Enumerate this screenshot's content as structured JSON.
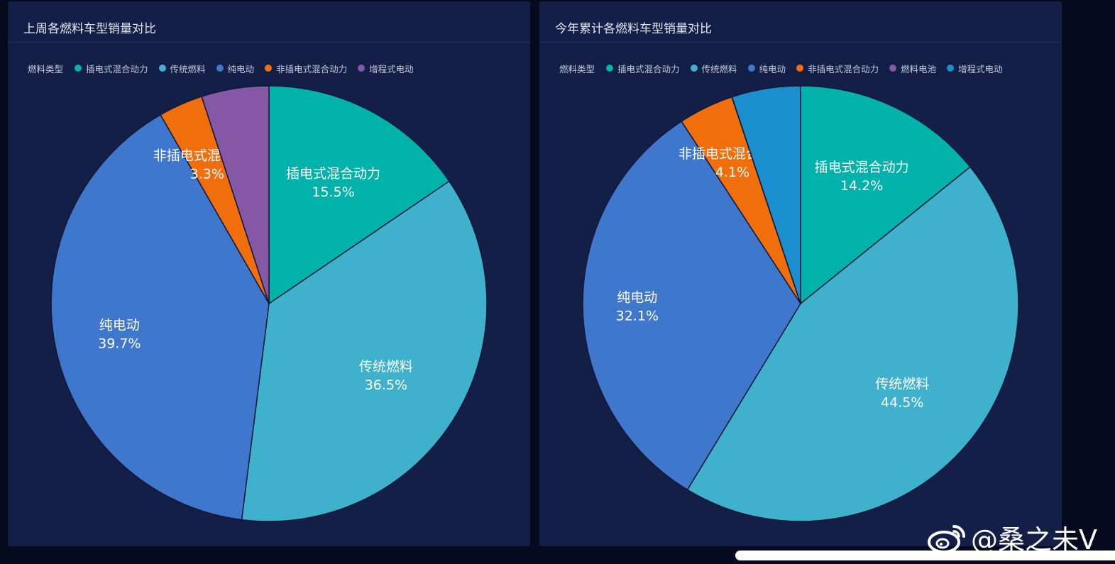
{
  "chart_data": [
    {
      "type": "pie",
      "title": "上周各燃料车型销量对比",
      "legend_title": "燃料类型",
      "legend_placement": "top-left",
      "categories": [
        "插电式混合动力",
        "传统燃料",
        "纯电动",
        "非插电式混合动力",
        "增程式电动"
      ],
      "values": [
        15.5,
        36.5,
        39.7,
        3.3,
        5.0
      ],
      "labels": [
        {
          "name": "插电式混合动力",
          "value": "15.5%"
        },
        {
          "name": "传统燃料",
          "value": "36.5%"
        },
        {
          "name": "纯电动",
          "value": "39.7%"
        },
        {
          "name": "非插电式混合动力",
          "value": "3.3%"
        },
        {
          "name": "增程式电动",
          "value": ""
        }
      ],
      "colors": [
        "#00b2a9",
        "#3fb1cc",
        "#3f77cd",
        "#f16e0c",
        "#8558a5"
      ]
    },
    {
      "type": "pie",
      "title": "今年累计各燃料车型销量对比",
      "legend_title": "燃料类型",
      "legend_placement": "top-left",
      "categories": [
        "插电式混合动力",
        "传统燃料",
        "纯电动",
        "非插电式混合动力",
        "燃料电池",
        "增程式电动"
      ],
      "values": [
        14.2,
        44.5,
        32.1,
        4.1,
        0.01,
        5.1
      ],
      "labels": [
        {
          "name": "插电式混合动力",
          "value": "14.2%"
        },
        {
          "name": "传统燃料",
          "value": "44.5%"
        },
        {
          "name": "纯电动",
          "value": "32.1%"
        },
        {
          "name": "非插电式混合动力",
          "value": "4.1%"
        },
        {
          "name": "燃料电池",
          "value": ""
        },
        {
          "name": "增程式电动",
          "value": ""
        }
      ],
      "colors": [
        "#00b2a9",
        "#3fb1cc",
        "#3f77cd",
        "#f16e0c",
        "#8558a5",
        "#1b8fcd"
      ]
    }
  ],
  "watermark": {
    "text": "@桑之未V",
    "icon": "weibo-icon"
  }
}
